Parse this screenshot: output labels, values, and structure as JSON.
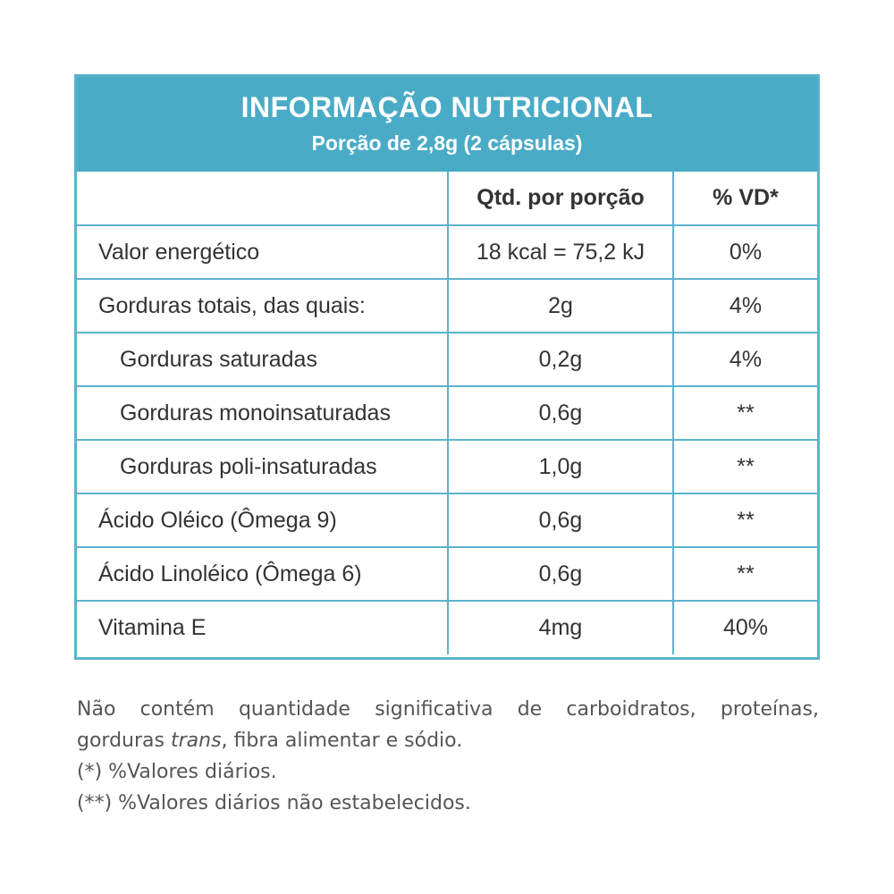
{
  "header": {
    "title": "INFORMAÇÃO NUTRICIONAL",
    "subtitle": "Porção de 2,8g (2 cápsulas)"
  },
  "columns": {
    "label": "",
    "qty": "Qtd. por porção",
    "vd": "% VD*"
  },
  "rows": [
    {
      "label": "Valor energético",
      "qty": "18 kcal = 75,2 kJ",
      "vd": "0%"
    },
    {
      "label": "Gorduras totais, das quais:",
      "qty": "2g",
      "vd": "4%"
    },
    {
      "label": "Gorduras saturadas",
      "qty": "0,2g",
      "vd": "4%"
    },
    {
      "label": "Gorduras monoinsaturadas",
      "qty": "0,6g",
      "vd": "**"
    },
    {
      "label": "Gorduras poli-insaturadas",
      "qty": "1,0g",
      "vd": "**"
    },
    {
      "label": "Ácido Oléico (Ômega 9)",
      "qty": "0,6g",
      "vd": "**"
    },
    {
      "label": "Ácido Linoléico (Ômega 6)",
      "qty": "0,6g",
      "vd": "**"
    },
    {
      "label": "Vitamina E",
      "qty": "4mg",
      "vd": "40%"
    }
  ],
  "notes": {
    "line1": "Não contém quantidade significativa de carboidratos, proteínas,",
    "line2_pre": "gorduras ",
    "line2_italic": "trans",
    "line2_post": ", fibra alimentar e sódio.",
    "line3": "(*) %Valores diários.",
    "line4": "(**) %Valores diários não estabelecidos."
  },
  "colors": {
    "header_bg": "#4aabc6",
    "border": "#5bb3cc",
    "text": "#333333"
  }
}
